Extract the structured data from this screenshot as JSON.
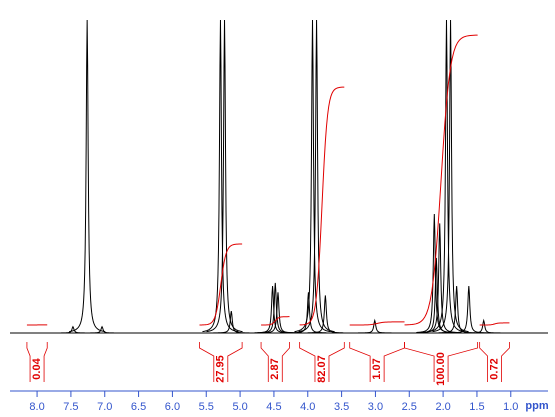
{
  "chart_data": {
    "type": "spectrum",
    "x_label": "ppm",
    "xlim": [
      8.4,
      0.45
    ],
    "ylim": [
      0,
      100
    ],
    "xticks": [
      {
        "value": 8,
        "label": "8.0"
      },
      7.5,
      {
        "value": 7,
        "label": "7.0"
      },
      6.5,
      {
        "value": 6,
        "label": "6.0"
      },
      5.5,
      {
        "value": 5,
        "label": "5.0"
      },
      4.5,
      {
        "value": 4,
        "label": "4.0"
      },
      3.5,
      {
        "value": 3,
        "label": "3.0"
      },
      2.5,
      {
        "value": 2,
        "label": "2.0"
      },
      1.5,
      {
        "value": 1,
        "label": "1.0"
      }
    ],
    "color": "#000000",
    "peaks": {
      "x": [
        7.47,
        7.26,
        7.04,
        5.29,
        5.23,
        5.13,
        4.52,
        4.48,
        4.44,
        3.99,
        3.93,
        3.87,
        3.74,
        3.01,
        2.13,
        2.1,
        2.05,
        1.95,
        1.89,
        1.8,
        1.62,
        1.4
      ],
      "values": [
        2,
        100,
        2,
        100,
        100,
        7,
        15,
        16,
        13,
        13,
        100,
        100,
        12,
        4,
        38,
        24,
        35,
        100,
        100,
        15,
        15,
        4
      ]
    },
    "integrals": {
      "color": "#e00000",
      "ranges": [
        [
          8.15,
          7.85
        ],
        [
          5.6,
          4.97
        ],
        [
          4.69,
          4.27
        ],
        [
          4.12,
          3.46
        ],
        [
          3.38,
          2.57
        ],
        [
          2.57,
          1.49
        ],
        [
          1.46,
          1.02
        ]
      ],
      "values": [
        0.04,
        27.95,
        2.87,
        82.07,
        1.07,
        100,
        0.72
      ],
      "value_labels": [
        "0.04",
        "27.95",
        "2.87",
        "82.07",
        "1.07",
        "100.00",
        "0.72"
      ]
    }
  }
}
